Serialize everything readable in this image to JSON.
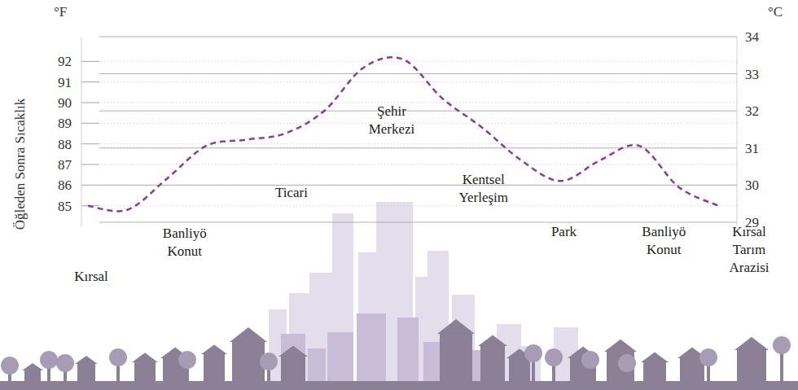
{
  "chart_data": {
    "type": "line",
    "y_label": "Öğleden Sonra Sıcaklık",
    "y_unit": "°F",
    "y2_unit": "°C",
    "categories": [
      "Kırsal",
      null,
      "Banliyö Konut",
      null,
      null,
      "Ticari",
      null,
      null,
      "Şehir Merkezi",
      null,
      "Kentsel Yerleşim",
      null,
      "Park",
      null,
      "Banliyö Konut",
      null,
      "Kırsal Tarım Arazisi"
    ],
    "values": [
      85.0,
      84.8,
      86.3,
      87.9,
      88.2,
      88.5,
      89.6,
      91.7,
      92.1,
      90.2,
      88.8,
      87.2,
      86.2,
      87.2,
      87.9,
      85.9,
      85.0
    ],
    "color": "#8e3a9b",
    "line_style": "dashed",
    "ylim": [
      84,
      93.2
    ],
    "yticks": [
      85,
      86,
      87,
      88,
      89,
      90,
      91,
      92
    ],
    "y2lim": [
      28.89,
      34
    ],
    "y2ticks": [
      29,
      30,
      31,
      32,
      33,
      34
    ],
    "grid": true
  }
}
